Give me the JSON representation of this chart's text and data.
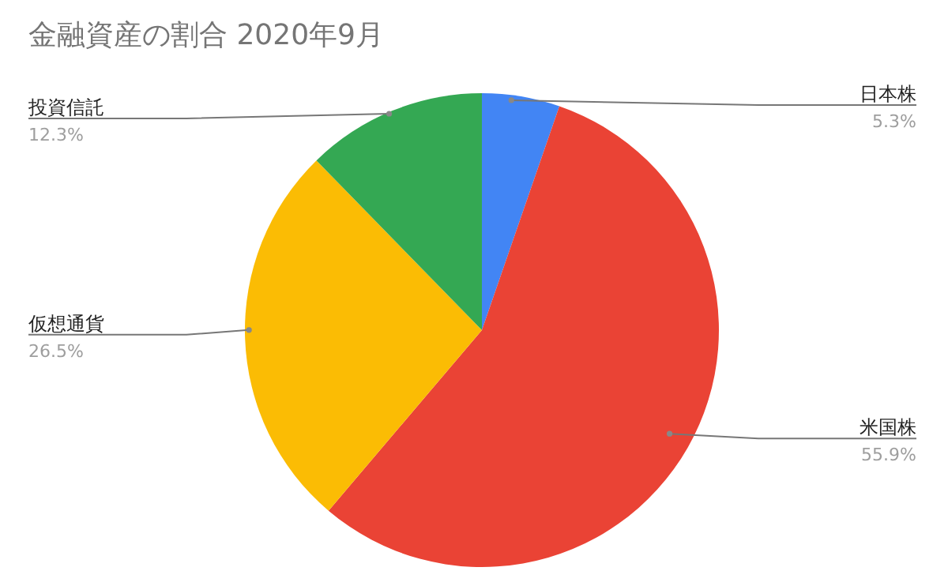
{
  "chart_data": {
    "type": "pie",
    "title": "金融資産の割合  2020年9月",
    "categories": [
      "日本株",
      "米国株",
      "仮想通貨",
      "投資信託"
    ],
    "values": [
      5.3,
      55.9,
      26.5,
      12.3
    ],
    "value_labels": [
      "5.3%",
      "55.9%",
      "26.5%",
      "12.3%"
    ],
    "colors": [
      "#4285f4",
      "#ea4335",
      "#fbbc04",
      "#34a853"
    ],
    "legend": false
  }
}
